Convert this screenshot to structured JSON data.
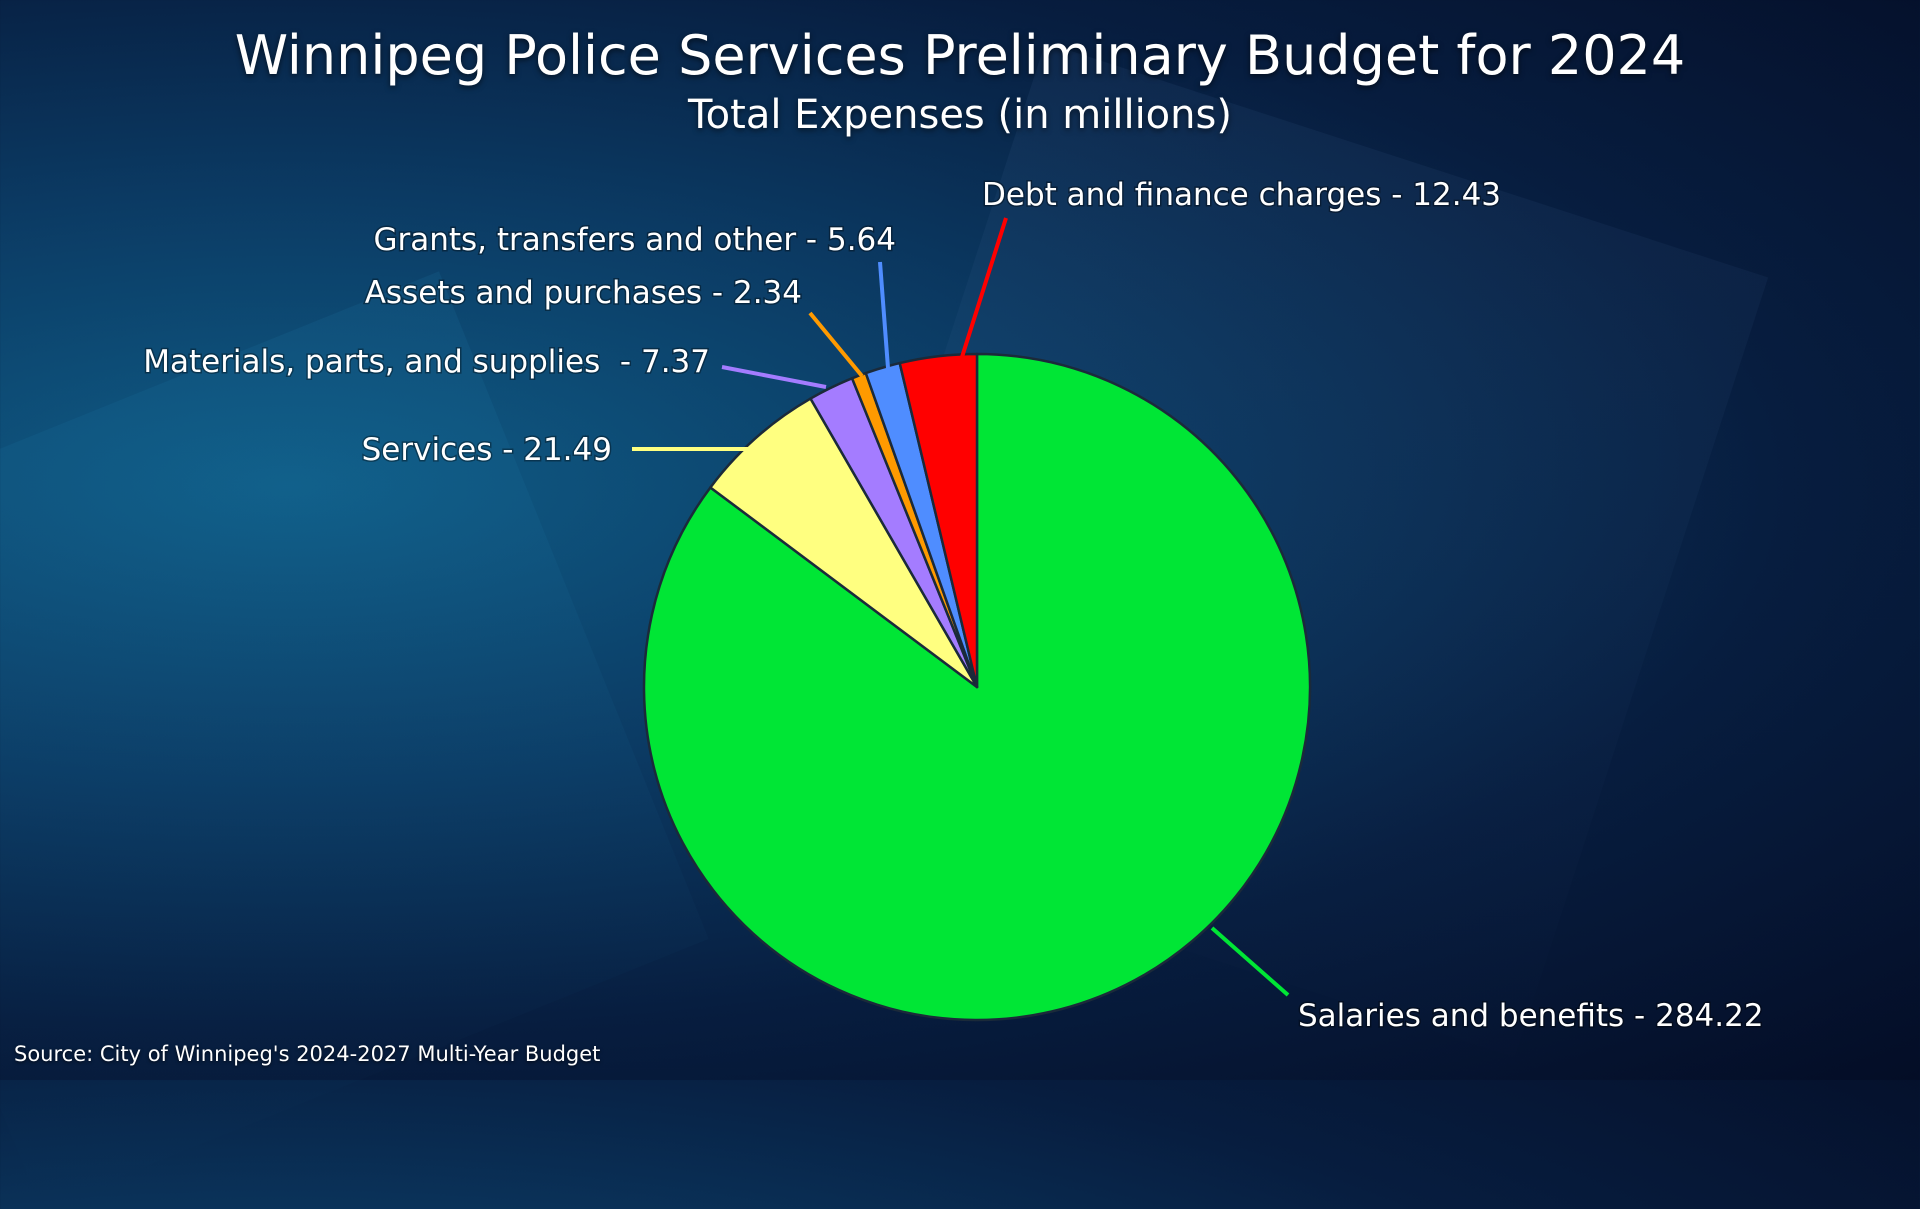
{
  "chart_data": {
    "type": "pie",
    "title": "Winnipeg Police Services Preliminary Budget for 2024",
    "subtitle": "Total Expenses (in millions)",
    "slices": [
      {
        "label": "Salaries and benefits",
        "display": "Salaries and benefits - 284.22",
        "value": 284.22,
        "color": "#00e635"
      },
      {
        "label": "Services",
        "display": "Services - 21.49",
        "value": 21.49,
        "color": "#ffff80"
      },
      {
        "label": "Materials, parts, and supplies",
        "display": "Materials, parts, and supplies  - 7.37",
        "value": 7.37,
        "color": "#a47cff"
      },
      {
        "label": "Assets and purchases",
        "display": "Assets and purchases - 2.34",
        "value": 2.34,
        "color": "#ff9a00"
      },
      {
        "label": "Grants, transfers and other",
        "display": "Grants, transfers and other - 5.64",
        "value": 5.64,
        "color": "#4f8dff"
      },
      {
        "label": "Debt and finance charges",
        "display": "Debt and finance charges - 12.43",
        "value": 12.43,
        "color": "#ff0000"
      }
    ],
    "legend": "none",
    "start_angle": "12 o'clock, counter-clockwise after salaries"
  },
  "source": "Source: City of Winnipeg's 2024-2027 Multi-Year Budget"
}
